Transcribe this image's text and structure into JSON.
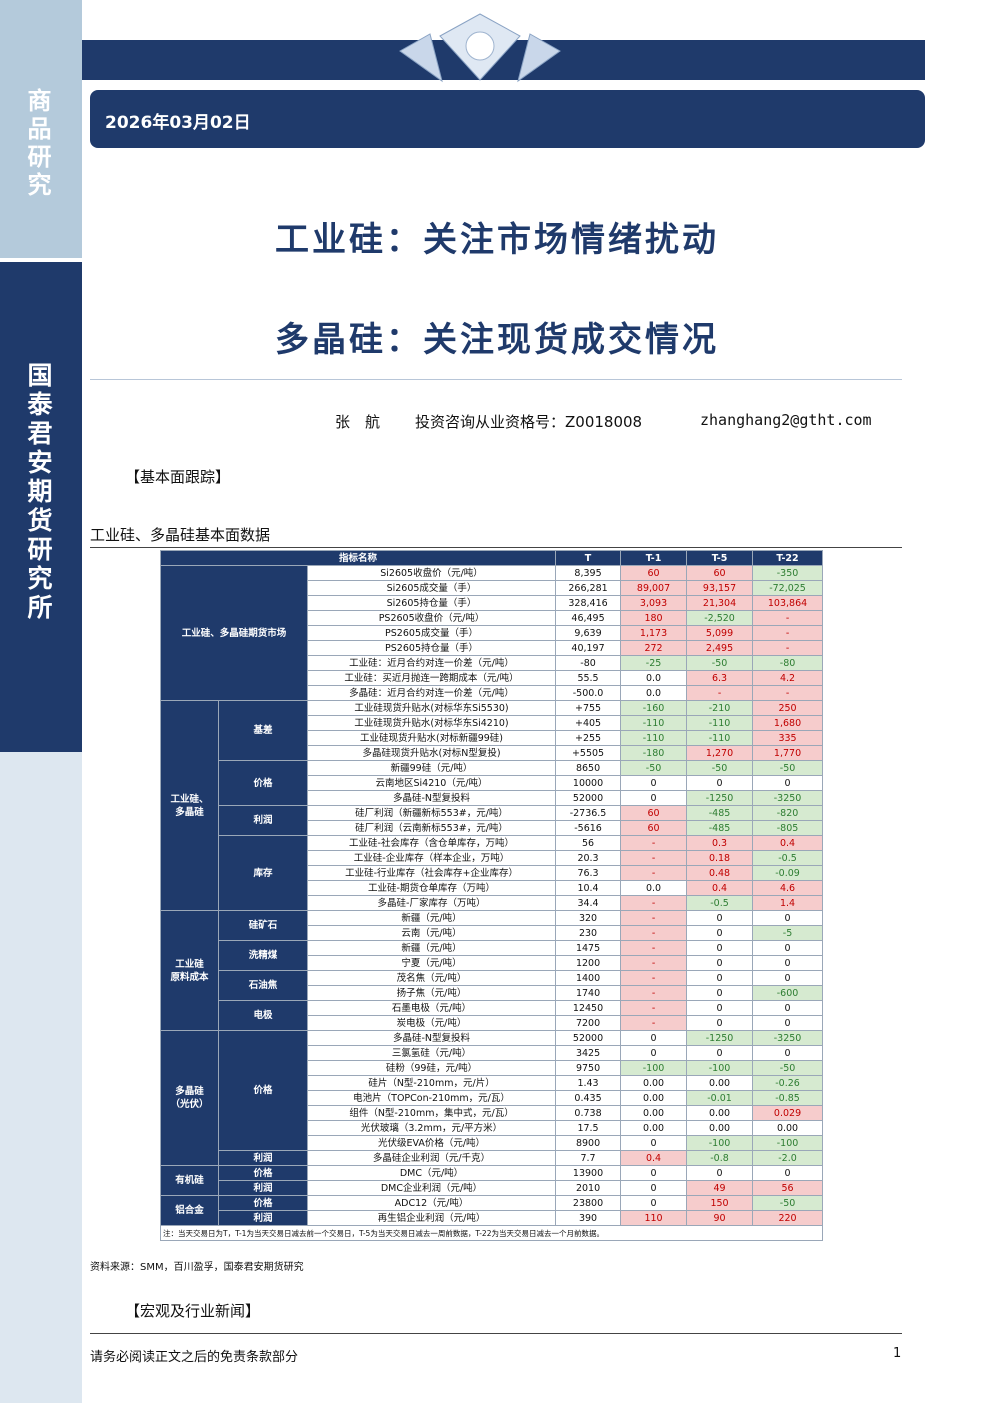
{
  "sidebar": {
    "top": "商品研究",
    "middle": "国泰君安期货研究所"
  },
  "header": {
    "date": "2026年03月02日",
    "title1": "工业硅：关注市场情绪扰动",
    "title2": "多晶硅：关注现货成交情况"
  },
  "author": {
    "name": "张　航",
    "license": "投资咨询从业资格号：Z0018008",
    "email": "zhanghang2@gtht.com"
  },
  "section1": "【基本面跟踪】",
  "table": {
    "caption": "工业硅、多晶硅基本面数据",
    "columns": [
      "指标名称",
      "T",
      "T-1",
      "T-5",
      "T-22"
    ],
    "groups": [
      {
        "label": "工业硅、多晶硅期货市场",
        "rows": [
          [
            "Si2605收盘价（元/吨）",
            "8,395",
            "60",
            "60",
            "-350",
            "rrg"
          ],
          [
            "Si2605成交量（手）",
            "266,281",
            "89,007",
            "93,157",
            "-72,025",
            "rrg"
          ],
          [
            "Si2605持仓量（手）",
            "328,416",
            "3,093",
            "21,304",
            "103,864",
            "rrr"
          ],
          [
            "PS2605收盘价（元/吨）",
            "46,495",
            "180",
            "-2,520",
            "-",
            "rgr"
          ],
          [
            "PS2605成交量（手）",
            "9,639",
            "1,173",
            "5,099",
            "-",
            "rrr"
          ],
          [
            "PS2605持仓量（手）",
            "40,197",
            "272",
            "2,495",
            "-",
            "rrr"
          ],
          [
            "工业硅：近月合约对连一价差（元/吨）",
            "-80",
            "-25",
            "-50",
            "-80",
            "ggg"
          ],
          [
            "工业硅：买近月抛连一跨期成本（元/吨）",
            "55.5",
            "0.0",
            "6.3",
            "4.2",
            "wrr"
          ],
          [
            "多晶硅：近月合约对连一价差（元/吨）",
            "-500.0",
            "0.0",
            "-",
            "-",
            "wrr"
          ]
        ]
      },
      {
        "label": "工业硅、\n多晶硅",
        "subgroups": [
          {
            "label": "基差",
            "rows": [
              [
                "工业硅现货升贴水(对标华东Si5530)",
                "+755",
                "-160",
                "-210",
                "250",
                "ggr"
              ],
              [
                "工业硅现货升贴水(对标华东Si4210)",
                "+405",
                "-110",
                "-110",
                "1,680",
                "ggr"
              ],
              [
                "工业硅现货升贴水(对标新疆99硅)",
                "+255",
                "-110",
                "-110",
                "335",
                "ggr"
              ],
              [
                "多晶硅现货升贴水(对标N型复投)",
                "+5505",
                "-180",
                "1,270",
                "1,770",
                "grr"
              ]
            ]
          },
          {
            "label": "价格",
            "rows": [
              [
                "新疆99硅（元/吨）",
                "8650",
                "-50",
                "-50",
                "-50",
                "ggg"
              ],
              [
                "云南地区Si4210（元/吨）",
                "10000",
                "0",
                "0",
                "0",
                "www"
              ],
              [
                "多晶硅-N型复投料",
                "52000",
                "0",
                "-1250",
                "-3250",
                "wgg"
              ]
            ]
          },
          {
            "label": "利润",
            "rows": [
              [
                "硅厂利润（新疆新标553#，元/吨）",
                "-2736.5",
                "60",
                "-485",
                "-820",
                "rgg"
              ],
              [
                "硅厂利润（云南新标553#，元/吨）",
                "-5616",
                "60",
                "-485",
                "-805",
                "rgg"
              ]
            ]
          },
          {
            "label": "库存",
            "rows": [
              [
                "工业硅-社会库存（含仓单库存，万吨）",
                "56",
                "-",
                "0.3",
                "0.4",
                "rrr"
              ],
              [
                "工业硅-企业库存（样本企业，万吨）",
                "20.3",
                "-",
                "0.18",
                "-0.5",
                "rrg"
              ],
              [
                "工业硅-行业库存（社会库存+企业库存）",
                "76.3",
                "-",
                "0.48",
                "-0.09",
                "rrg"
              ],
              [
                "工业硅-期货仓单库存（万吨）",
                "10.4",
                "0.0",
                "0.4",
                "4.6",
                "wrr"
              ],
              [
                "多晶硅-厂家库存（万吨）",
                "34.4",
                "-",
                "-0.5",
                "1.4",
                "rgr"
              ]
            ]
          }
        ]
      },
      {
        "label": "工业硅\n原料成本",
        "subgroups": [
          {
            "label": "硅矿石",
            "rows": [
              [
                "新疆（元/吨）",
                "320",
                "-",
                "0",
                "0",
                "rww"
              ],
              [
                "云南（元/吨）",
                "230",
                "-",
                "0",
                "-5",
                "rwg"
              ]
            ]
          },
          {
            "label": "洗精煤",
            "rows": [
              [
                "新疆（元/吨）",
                "1475",
                "-",
                "0",
                "0",
                "rww"
              ],
              [
                "宁夏（元/吨）",
                "1200",
                "-",
                "0",
                "0",
                "rww"
              ]
            ]
          },
          {
            "label": "石油焦",
            "rows": [
              [
                "茂名焦（元/吨）",
                "1400",
                "-",
                "0",
                "0",
                "rww"
              ],
              [
                "扬子焦（元/吨）",
                "1740",
                "-",
                "0",
                "-600",
                "rwg"
              ]
            ]
          },
          {
            "label": "电极",
            "rows": [
              [
                "石墨电极（元/吨）",
                "12450",
                "-",
                "0",
                "0",
                "rww"
              ],
              [
                "炭电极（元/吨）",
                "7200",
                "-",
                "0",
                "0",
                "rww"
              ]
            ]
          }
        ]
      },
      {
        "label": "多晶硅\n（光伏）",
        "subgroups": [
          {
            "label": "价格",
            "rows": [
              [
                "多晶硅-N型复投料",
                "52000",
                "0",
                "-1250",
                "-3250",
                "wgg"
              ],
              [
                "三氯氢硅（元/吨）",
                "3425",
                "0",
                "0",
                "0",
                "www"
              ],
              [
                "硅粉（99硅，元/吨）",
                "9750",
                "-100",
                "-100",
                "-50",
                "ggg"
              ],
              [
                "硅片（N型-210mm，元/片）",
                "1.43",
                "0.00",
                "0.00",
                "-0.26",
                "wwg"
              ],
              [
                "电池片（TOPCon-210mm，元/瓦）",
                "0.435",
                "0.00",
                "-0.01",
                "-0.85",
                "wgg"
              ],
              [
                "组件（N型-210mm，集中式，元/瓦）",
                "0.738",
                "0.00",
                "0.00",
                "0.029",
                "wwr"
              ],
              [
                "光伏玻璃（3.2mm，元/平方米）",
                "17.5",
                "0.00",
                "0.00",
                "0.00",
                "www"
              ],
              [
                "光伏级EVA价格（元/吨）",
                "8900",
                "0",
                "-100",
                "-100",
                "wgg"
              ]
            ]
          },
          {
            "label": "利润",
            "rows": [
              [
                "多晶硅企业利润（元/千克）",
                "7.7",
                "0.4",
                "-0.8",
                "-2.0",
                "rgg"
              ]
            ]
          }
        ]
      },
      {
        "label": "有机硅",
        "subgroups": [
          {
            "label": "价格",
            "rows": [
              [
                "DMC（元/吨）",
                "13900",
                "0",
                "0",
                "0",
                "www"
              ]
            ]
          },
          {
            "label": "利润",
            "rows": [
              [
                "DMC企业利润（元/吨）",
                "2010",
                "0",
                "49",
                "56",
                "wrr"
              ]
            ]
          }
        ]
      },
      {
        "label": "铝合金",
        "subgroups": [
          {
            "label": "价格",
            "rows": [
              [
                "ADC12（元/吨）",
                "23800",
                "0",
                "150",
                "-50",
                "wrg"
              ]
            ]
          },
          {
            "label": "利润",
            "rows": [
              [
                "再生铝企业利润（元/吨）",
                "390",
                "110",
                "90",
                "220",
                "rrr"
              ]
            ]
          }
        ]
      }
    ],
    "note": "注：当天交易日为T，T-1为当天交易日减去前一个交易日，T-5为当天交易日减去一周前数据，T-22为当天交易日减去一个月前数据。"
  },
  "source": "资料来源：SMM，百川盈孚，国泰君安期货研究",
  "section2": "【宏观及行业新闻】",
  "footer": {
    "disclaimer": "请务必阅读正文之后的免责条款部分",
    "page": "1"
  }
}
